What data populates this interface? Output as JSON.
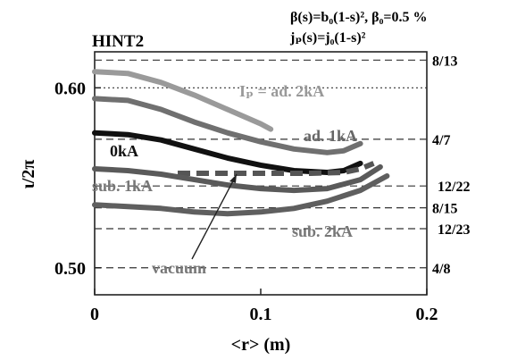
{
  "chart_data": {
    "type": "line",
    "title": "HINT2",
    "subtitle_lines": [
      "β(s)=b₀(1-s)², β₀=0.5 %",
      "jₚ(s)=j₀(1-s)²"
    ],
    "xlabel": "<r> (m)",
    "ylabel": "ι/2π",
    "xlim": [
      0,
      0.2
    ],
    "ylim": [
      0.485,
      0.62
    ],
    "x_ticks": [
      0,
      0.1,
      0.2
    ],
    "x_tick_labels": [
      "0",
      "0.1",
      "0.2"
    ],
    "y_ticks": [
      0.5,
      0.6
    ],
    "y_tick_labels": [
      "0.50",
      "0.60"
    ],
    "grid": false,
    "legend": "none",
    "rational_lines": [
      {
        "label": "8/13",
        "value": 0.61538,
        "style": "dashed"
      },
      {
        "label": "",
        "value": 0.6,
        "style": "dotted"
      },
      {
        "label": "4/7",
        "value": 0.57143,
        "style": "dashed"
      },
      {
        "label": "12/22",
        "value": 0.54545,
        "style": "dashed"
      },
      {
        "label": "8/15",
        "value": 0.53333,
        "style": "dashed"
      },
      {
        "label": "12/23",
        "value": 0.52174,
        "style": "dashed"
      },
      {
        "label": "4/8",
        "value": 0.5,
        "style": "dashed"
      }
    ],
    "series": [
      {
        "name": "Iₚ = ad. 2kA",
        "color": "#9a9a9a",
        "x": [
          0,
          0.02,
          0.04,
          0.06,
          0.08,
          0.1,
          0.106
        ],
        "y": [
          0.609,
          0.608,
          0.603,
          0.596,
          0.588,
          0.58,
          0.577
        ]
      },
      {
        "name": "ad. 1kA",
        "color": "#707070",
        "x": [
          0,
          0.02,
          0.04,
          0.06,
          0.08,
          0.1,
          0.12,
          0.14,
          0.15,
          0.16
        ],
        "y": [
          0.594,
          0.593,
          0.588,
          0.581,
          0.575,
          0.57,
          0.566,
          0.564,
          0.565,
          0.569
        ]
      },
      {
        "name": "0kA",
        "color": "#111111",
        "x": [
          0,
          0.02,
          0.04,
          0.06,
          0.08,
          0.1,
          0.12,
          0.14,
          0.15,
          0.16
        ],
        "y": [
          0.575,
          0.574,
          0.571,
          0.566,
          0.561,
          0.557,
          0.554,
          0.553,
          0.554,
          0.558
        ]
      },
      {
        "name": "vacuum",
        "color": "#555555",
        "dashed": true,
        "x": [
          0.05,
          0.07,
          0.09,
          0.11,
          0.13,
          0.15,
          0.16,
          0.168
        ],
        "y": [
          0.5525,
          0.5525,
          0.5525,
          0.5525,
          0.5525,
          0.553,
          0.555,
          0.558
        ]
      },
      {
        "name": "sub. 1kA",
        "color": "#5a5a5a",
        "x": [
          0,
          0.02,
          0.04,
          0.06,
          0.08,
          0.1,
          0.12,
          0.14,
          0.16,
          0.172
        ],
        "y": [
          0.555,
          0.554,
          0.552,
          0.549,
          0.546,
          0.544,
          0.543,
          0.544,
          0.549,
          0.556
        ]
      },
      {
        "name": "sub. 2kA",
        "color": "#5f5f5f",
        "x": [
          0,
          0.02,
          0.04,
          0.06,
          0.08,
          0.1,
          0.12,
          0.14,
          0.16,
          0.176
        ],
        "y": [
          0.535,
          0.534,
          0.533,
          0.531,
          0.53,
          0.531,
          0.533,
          0.537,
          0.543,
          0.551
        ]
      }
    ],
    "annotations": [
      {
        "text": "vacuum",
        "arrow": true,
        "target": [
          0.085,
          0.5525
        ]
      }
    ]
  }
}
